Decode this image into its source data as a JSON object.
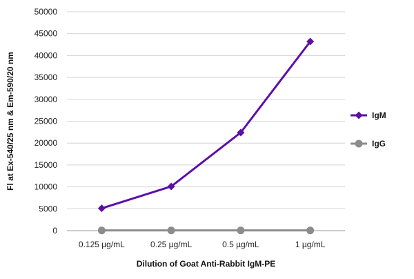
{
  "chart_data": {
    "type": "line",
    "categories": [
      "0.125 µg/mL",
      "0.25 µg/mL",
      "0.5 µg/mL",
      "1 µg/mL"
    ],
    "series": [
      {
        "name": "IgM",
        "values": [
          5100,
          10100,
          22400,
          43200
        ],
        "color": "#5b0fa8",
        "marker": "diamond"
      },
      {
        "name": "IgG",
        "values": [
          50,
          50,
          50,
          50
        ],
        "color": "#8c8c8c",
        "marker": "circle"
      }
    ],
    "xlabel": "Dilution of Goat Anti-Rabbit IgM-PE",
    "ylabel": "Fl at Ex-540/25 nm & Em-590/20 nm",
    "ylim": [
      0,
      50000
    ],
    "yticks": [
      0,
      5000,
      10000,
      15000,
      20000,
      25000,
      30000,
      35000,
      40000,
      45000,
      50000
    ],
    "grid": true,
    "legend_position": "right"
  }
}
